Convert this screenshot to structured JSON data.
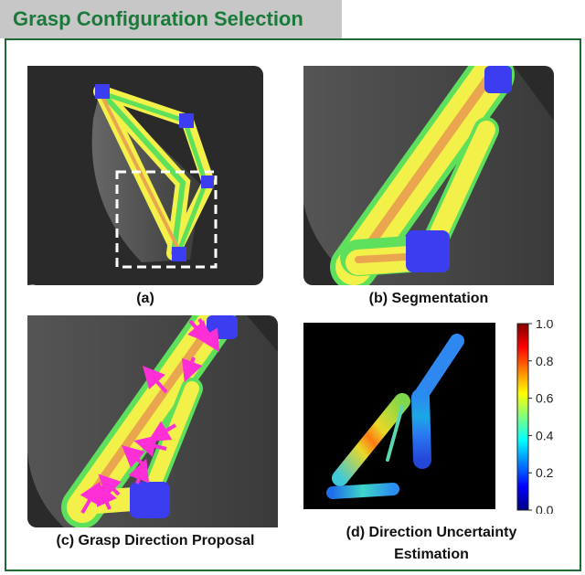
{
  "header": {
    "title": "Grasp Configuration  Selection"
  },
  "captions": {
    "a": "(a)",
    "b": "(b) Segmentation",
    "c": "(c) Grasp Direction Proposal",
    "d_line1": "(d) Direction Uncertainty",
    "d_line2": "Estimation"
  },
  "colorbar": {
    "ticks": [
      "1.0",
      "0.8",
      "0.6",
      "0.4",
      "0.2",
      "0.0"
    ],
    "colormap": "jet"
  },
  "colors": {
    "frame_border": "#1e6b34",
    "title_text": "#1a7a3a",
    "header_bg": "#c7c7c7",
    "segment_yellow": "#f4f04a",
    "segment_green": "#5fe05c",
    "segment_orange": "#e9a64e",
    "end_blue": "#3c3cf0",
    "arrow_magenta": "#ff2fd6"
  }
}
